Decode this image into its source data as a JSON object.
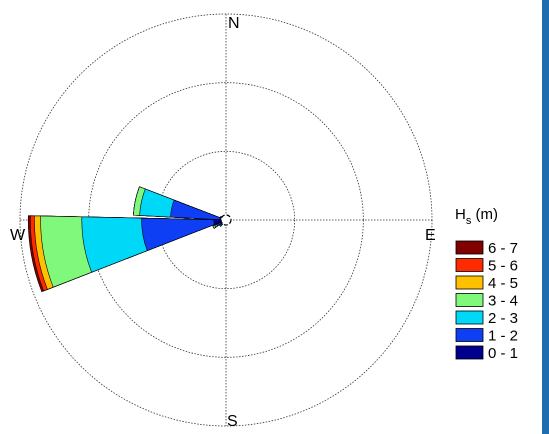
{
  "chart_data": {
    "type": "wind-rose",
    "legend_title": {
      "main": "H",
      "sub": "s",
      "unit": " (m)"
    },
    "directions": {
      "north": "N",
      "east": "E",
      "south": "S",
      "west": "W"
    },
    "grid": true,
    "rings": 3,
    "legend_position": "right",
    "bins": [
      {
        "label": "0 - 1",
        "color": "#00008f"
      },
      {
        "label": "1 - 2",
        "color": "#0f3ff5"
      },
      {
        "label": "2 - 3",
        "color": "#00d8f8"
      },
      {
        "label": "3 - 4",
        "color": "#80f87c"
      },
      {
        "label": "4 - 5",
        "color": "#ffc000"
      },
      {
        "label": "5 - 6",
        "color": "#ff2a00"
      },
      {
        "label": "6 - 7",
        "color": "#800000"
      }
    ],
    "sectors": [
      {
        "direction_deg": 260,
        "width_deg": 22.5,
        "cumulative": [
          0.06,
          0.41,
          0.7,
          0.9,
          0.93,
          0.95,
          0.96
        ]
      },
      {
        "direction_deg": 282,
        "width_deg": 18,
        "cumulative": [
          0.03,
          0.27,
          0.42,
          0.45,
          0.45,
          0.45,
          0.45
        ]
      },
      {
        "direction_deg": 240,
        "width_deg": 10,
        "cumulative": [
          0.02,
          0.05,
          0.06,
          0.07,
          0.07,
          0.07,
          0.07
        ]
      },
      {
        "direction_deg": 225,
        "width_deg": 10,
        "cumulative": [
          0.01,
          0.03,
          0.04,
          0.04,
          0.04,
          0.04,
          0.04
        ]
      },
      {
        "direction_deg": 300,
        "width_deg": 12,
        "cumulative": [
          0.02,
          0.03,
          0.03,
          0.03,
          0.03,
          0.03,
          0.03
        ]
      }
    ]
  }
}
